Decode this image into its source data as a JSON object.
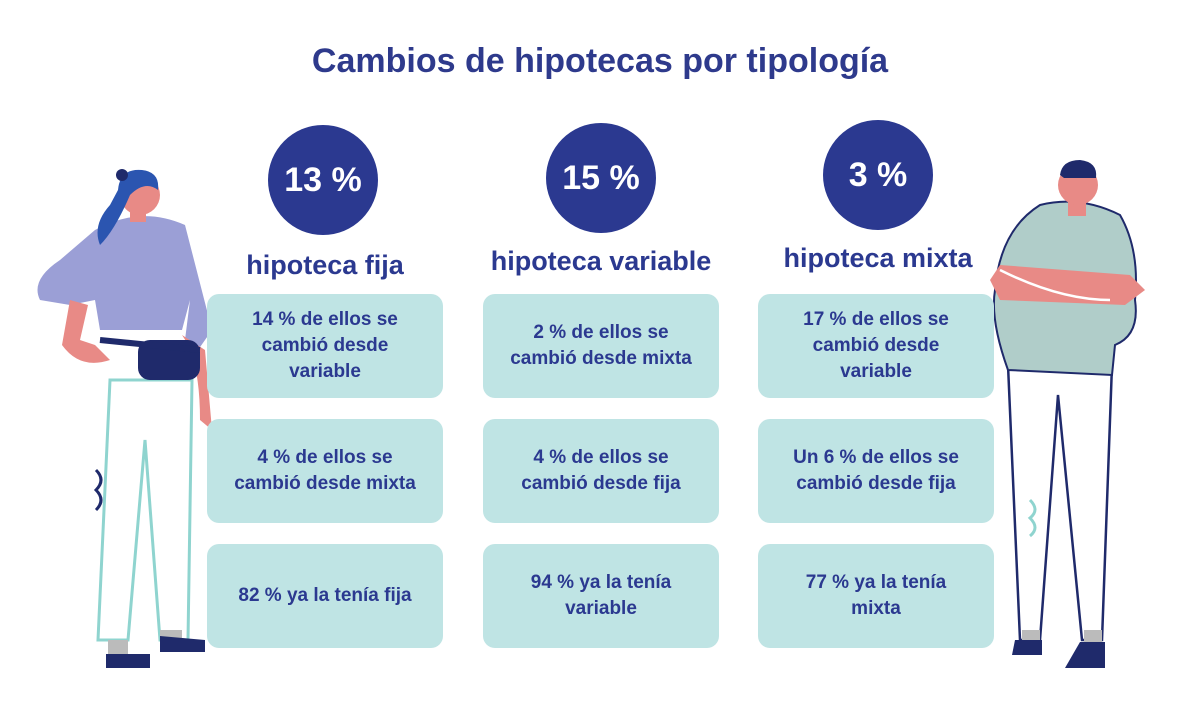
{
  "title": "Cambios de hipotecas por tipología",
  "columns": [
    {
      "percent": "13 %",
      "label": "hipoteca fija",
      "boxes": [
        "14 % de ellos se cambió desde variable",
        "4 % de ellos se cambió desde mixta",
        "82 % ya la tenía fija"
      ]
    },
    {
      "percent": "15 %",
      "label": "hipoteca variable",
      "boxes": [
        "2 % de ellos se cambió desde mixta",
        "4 % de ellos se cambió desde fija",
        "94 % ya la tenía variable"
      ]
    },
    {
      "percent": "3 %",
      "label": "hipoteca mixta",
      "boxes": [
        "17 % de ellos se cambió desde variable",
        "Un 6 % de ellos se cambió desde fija",
        "77 % ya la tenía mixta"
      ]
    }
  ]
}
